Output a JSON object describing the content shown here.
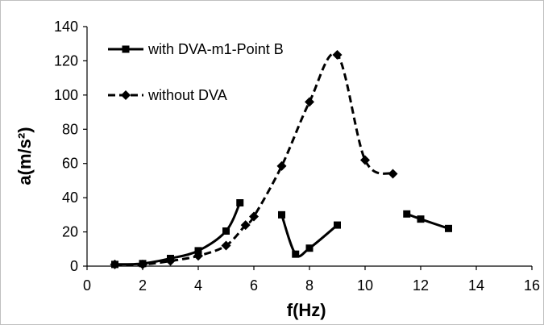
{
  "chart_data": {
    "type": "line",
    "xlabel": "f(Hz)",
    "ylabel": "a(m/s²)",
    "xlim": [
      0,
      16
    ],
    "ylim": [
      0,
      140
    ],
    "xticks": [
      0,
      2,
      4,
      6,
      8,
      10,
      12,
      14,
      16
    ],
    "yticks": [
      0,
      20,
      40,
      60,
      80,
      100,
      120,
      140
    ],
    "grid": false,
    "legend_position": "top-left",
    "series": [
      {
        "name": "with DVA-m1-Point B",
        "style": "solid",
        "marker": "square",
        "color": "#000000",
        "segments": [
          [
            [
              1,
              1
            ],
            [
              2,
              1.5
            ],
            [
              3,
              4.5
            ],
            [
              4,
              9
            ],
            [
              5,
              20.5
            ],
            [
              5.5,
              37
            ]
          ],
          [
            [
              7,
              30
            ],
            [
              7.5,
              7
            ],
            [
              8,
              10.5
            ],
            [
              9,
              24
            ]
          ],
          [
            [
              11.5,
              30.5
            ],
            [
              12,
              27.5
            ],
            [
              13,
              22
            ]
          ]
        ]
      },
      {
        "name": "without DVA",
        "style": "dashed",
        "marker": "diamond",
        "color": "#000000",
        "segments": [
          [
            [
              1,
              1
            ],
            [
              2,
              1
            ],
            [
              3,
              3
            ],
            [
              4,
              6
            ],
            [
              5,
              12
            ],
            [
              5.7,
              24
            ],
            [
              6,
              29
            ],
            [
              7,
              58.5
            ],
            [
              8,
              96
            ],
            [
              9,
              123.5
            ],
            [
              10,
              62
            ],
            [
              11,
              54
            ]
          ]
        ]
      }
    ]
  }
}
